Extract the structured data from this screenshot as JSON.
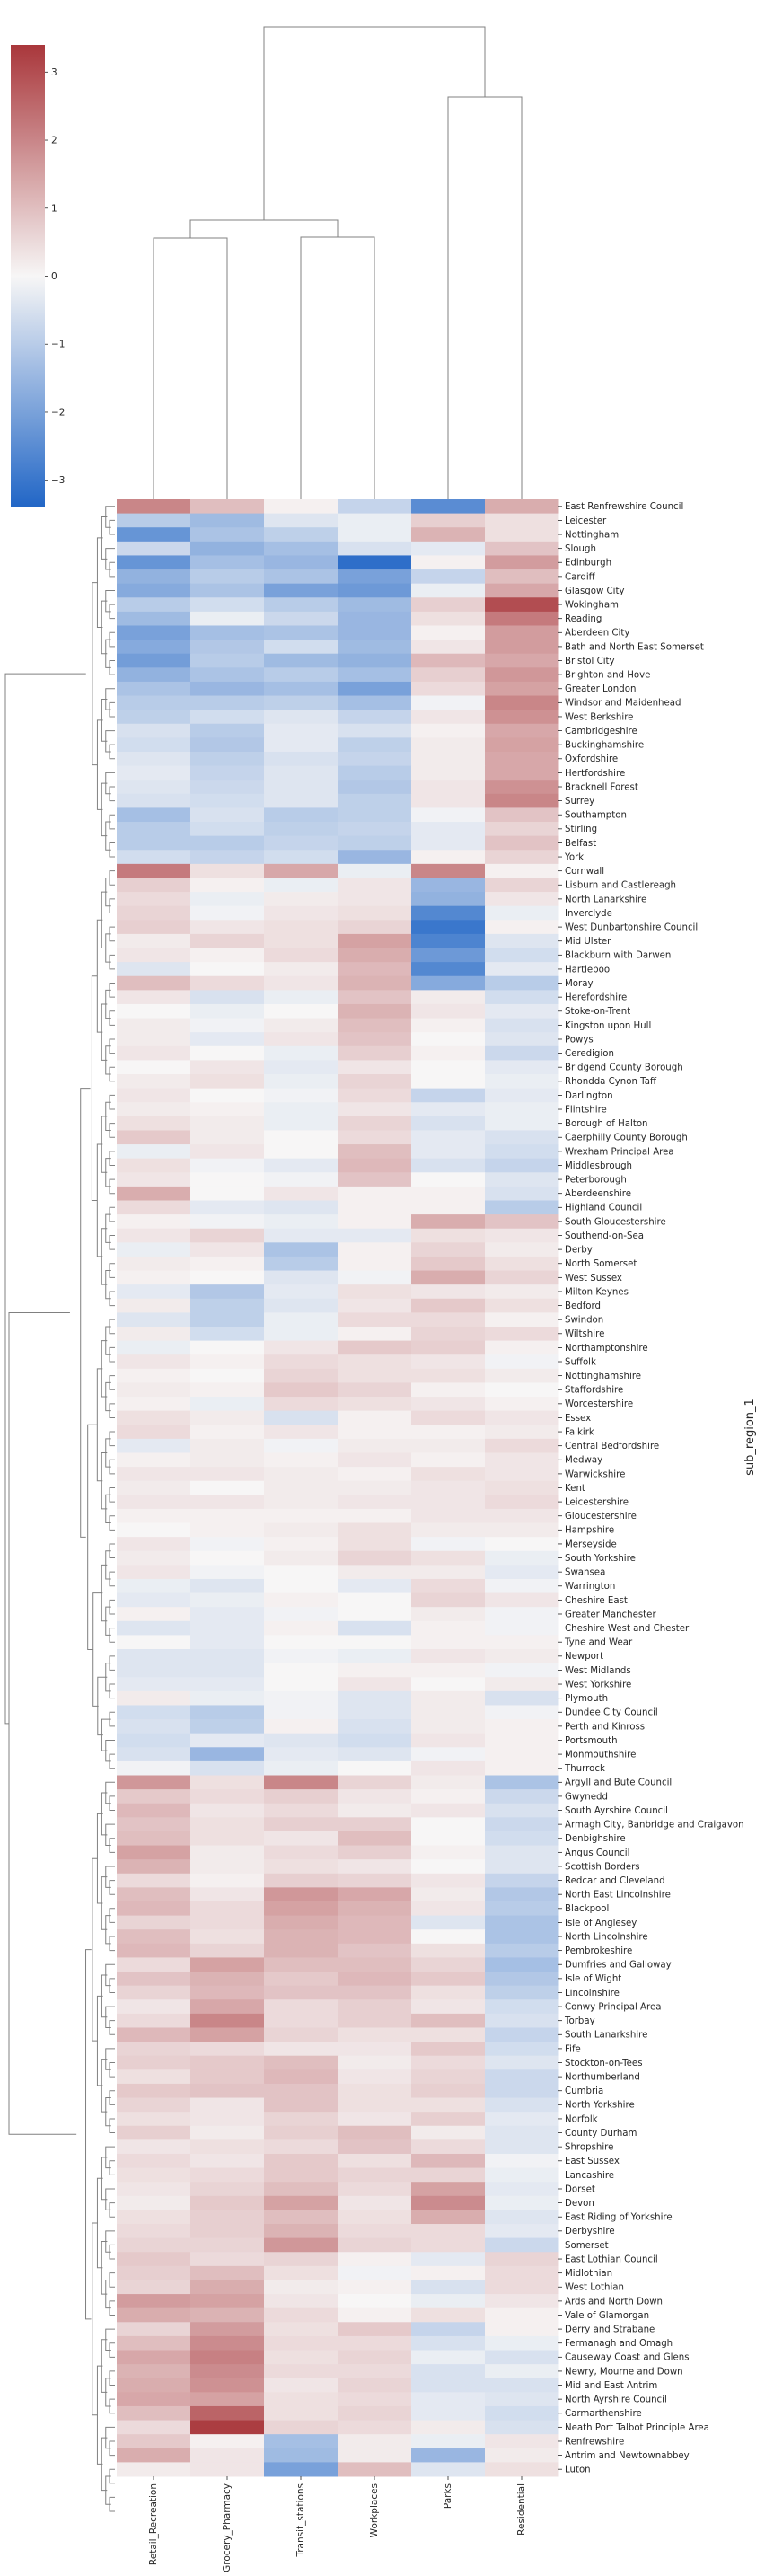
{
  "chart_data": {
    "type": "heatmap",
    "title": "",
    "xlabel": "",
    "ylabel": "sub_region_1",
    "columns": [
      "Retail_Recreation",
      "Grocery_Pharmacy",
      "Transit_stations",
      "Workplaces",
      "Parks",
      "Residential"
    ],
    "rows": [
      "East Renfrewshire Council",
      "Leicester",
      "Nottingham",
      "Slough",
      "Edinburgh",
      "Cardiff",
      "Glasgow City",
      "Wokingham",
      "Reading",
      "Aberdeen City",
      "Bath and North East Somerset",
      "Bristol City",
      "Brighton and Hove",
      "Greater London",
      "Windsor and Maidenhead",
      "West Berkshire",
      "Cambridgeshire",
      "Buckinghamshire",
      "Oxfordshire",
      "Hertfordshire",
      "Bracknell Forest",
      "Surrey",
      "Southampton",
      "Stirling",
      "Belfast",
      "York",
      "Cornwall",
      "Lisburn and Castlereagh",
      "North Lanarkshire",
      "Inverclyde",
      "West Dunbartonshire Council",
      "Mid Ulster",
      "Blackburn with Darwen",
      "Hartlepool",
      "Moray",
      "Herefordshire",
      "Stoke-on-Trent",
      "Kingston upon Hull",
      "Powys",
      "Ceredigion",
      "Bridgend County Borough",
      "Rhondda Cynon Taff",
      "Darlington",
      "Flintshire",
      "Borough of Halton",
      "Caerphilly County Borough",
      "Wrexham Principal Area",
      "Middlesbrough",
      "Peterborough",
      "Aberdeenshire",
      "Highland Council",
      "South Gloucestershire",
      "Southend-on-Sea",
      "Derby",
      "North Somerset",
      "West Sussex",
      "Milton Keynes",
      "Bedford",
      "Swindon",
      "Wiltshire",
      "Northamptonshire",
      "Suffolk",
      "Nottinghamshire",
      "Staffordshire",
      "Worcestershire",
      "Essex",
      "Falkirk",
      "Central Bedfordshire",
      "Medway",
      "Warwickshire",
      "Kent",
      "Leicestershire",
      "Gloucestershire",
      "Hampshire",
      "Merseyside",
      "South Yorkshire",
      "Swansea",
      "Warrington",
      "Cheshire East",
      "Greater Manchester",
      "Cheshire West and Chester",
      "Tyne and Wear",
      "Newport",
      "West Midlands",
      "West Yorkshire",
      "Plymouth",
      "Dundee City Council",
      "Perth and Kinross",
      "Portsmouth",
      "Monmouthshire",
      "Thurrock",
      "Argyll and Bute Council",
      "Gwynedd",
      "South Ayrshire Council",
      "Armagh City, Banbridge and Craigavon",
      "Denbighshire",
      "Angus Council",
      "Scottish Borders",
      "Redcar and Cleveland",
      "North East Lincolnshire",
      "Blackpool",
      "Isle of Anglesey",
      "North Lincolnshire",
      "Pembrokeshire",
      "Dumfries and Galloway",
      "Isle of Wight",
      "Lincolnshire",
      "Conwy Principal Area",
      "Torbay",
      "South Lanarkshire",
      "Fife",
      "Stockton-on-Tees",
      "Northumberland",
      "Cumbria",
      "North Yorkshire",
      "Norfolk",
      "County Durham",
      "Shropshire",
      "East Sussex",
      "Lancashire",
      "Dorset",
      "Devon",
      "East Riding of Yorkshire",
      "Derbyshire",
      "Somerset",
      "East Lothian Council",
      "Midlothian",
      "West Lothian",
      "Ards and North Down",
      "Vale of Glamorgan",
      "Derry and Strabane",
      "Fermanagh and Omagh",
      "Causeway Coast and Glens",
      "Newry, Mourne and Down",
      "Mid and East Antrim",
      "North Ayrshire Council",
      "Carmarthenshire",
      "Neath Port Talbot Principle Area",
      "Renfrewshire",
      "Antrim and Newtownabbey",
      "Luton"
    ],
    "values": [
      [
        2.0,
        1.0,
        0.1,
        -0.8,
        -2.5,
        1.3
      ],
      [
        -1.0,
        -1.4,
        -0.4,
        -0.2,
        0.7,
        0.4
      ],
      [
        -2.3,
        -1.2,
        -0.9,
        -0.2,
        1.2,
        0.4
      ],
      [
        -0.7,
        -1.6,
        -1.3,
        -0.5,
        -0.3,
        0.9
      ],
      [
        -2.3,
        -1.3,
        -1.5,
        -3.2,
        0.1,
        1.6
      ],
      [
        -1.6,
        -1.0,
        -1.2,
        -2.0,
        -0.8,
        1.0
      ],
      [
        -1.8,
        -1.2,
        -2.0,
        -2.2,
        -0.2,
        1.4
      ],
      [
        -1.0,
        -0.6,
        -1.0,
        -1.4,
        0.7,
        3.0
      ],
      [
        -1.4,
        -0.2,
        -0.7,
        -1.5,
        0.4,
        2.2
      ],
      [
        -2.0,
        -1.3,
        -1.2,
        -1.5,
        0.1,
        1.6
      ],
      [
        -1.8,
        -1.1,
        -0.6,
        -1.4,
        0.3,
        1.6
      ],
      [
        -2.1,
        -1.0,
        -1.4,
        -1.6,
        1.1,
        1.4
      ],
      [
        -1.6,
        -1.2,
        -1.0,
        -1.3,
        0.7,
        1.7
      ],
      [
        -1.2,
        -1.5,
        -1.3,
        -2.0,
        0.5,
        1.5
      ],
      [
        -1.0,
        -1.0,
        -0.9,
        -1.3,
        -0.1,
        2.0
      ],
      [
        -0.9,
        -0.6,
        -0.4,
        -0.8,
        0.3,
        1.8
      ],
      [
        -0.5,
        -1.0,
        -0.3,
        -0.5,
        0.1,
        1.4
      ],
      [
        -0.6,
        -1.1,
        -0.3,
        -0.9,
        0.2,
        1.5
      ],
      [
        -0.4,
        -0.9,
        -0.5,
        -0.8,
        0.2,
        1.4
      ],
      [
        -0.3,
        -0.8,
        -0.4,
        -1.0,
        0.2,
        1.4
      ],
      [
        -0.4,
        -0.7,
        -0.4,
        -1.1,
        0.3,
        1.8
      ],
      [
        -0.5,
        -0.6,
        -0.4,
        -0.9,
        0.3,
        2.0
      ],
      [
        -1.3,
        -0.5,
        -1.0,
        -0.9,
        -0.1,
        0.9
      ],
      [
        -1.0,
        -0.6,
        -0.9,
        -0.8,
        -0.3,
        0.6
      ],
      [
        -1.0,
        -1.0,
        -0.8,
        -0.9,
        -0.3,
        0.9
      ],
      [
        -0.6,
        -0.8,
        -0.6,
        -1.5,
        0.1,
        0.6
      ],
      [
        2.2,
        0.4,
        1.4,
        -0.2,
        2.0,
        0.1
      ],
      [
        0.7,
        0.1,
        -0.2,
        0.3,
        -1.5,
        0.6
      ],
      [
        0.5,
        -0.2,
        0.2,
        0.3,
        -1.6,
        0.3
      ],
      [
        0.6,
        -0.1,
        0.3,
        0.4,
        -2.6,
        -0.2
      ],
      [
        0.7,
        0.3,
        0.4,
        0.6,
        -3.0,
        0.1
      ],
      [
        0.2,
        0.6,
        0.4,
        1.5,
        -2.7,
        -0.4
      ],
      [
        0.3,
        0.1,
        0.5,
        1.3,
        -2.2,
        -0.6
      ],
      [
        -0.4,
        0.0,
        0.2,
        1.1,
        -2.6,
        -0.3
      ],
      [
        1.0,
        0.5,
        0.3,
        1.2,
        -1.8,
        -1.0
      ],
      [
        0.3,
        -0.5,
        -0.2,
        0.9,
        0.2,
        -0.6
      ],
      [
        0.0,
        -0.2,
        0.0,
        1.2,
        0.3,
        -0.3
      ],
      [
        0.2,
        -0.1,
        0.2,
        1.0,
        0.1,
        -0.5
      ],
      [
        0.2,
        -0.3,
        0.3,
        0.9,
        0.0,
        -0.4
      ],
      [
        0.3,
        0.0,
        -0.2,
        0.7,
        0.1,
        -0.7
      ],
      [
        0.0,
        0.3,
        -0.3,
        0.3,
        0.0,
        -0.3
      ],
      [
        0.2,
        0.4,
        -0.2,
        0.6,
        0.0,
        -0.2
      ],
      [
        0.3,
        0.0,
        -0.1,
        0.5,
        -0.8,
        -0.3
      ],
      [
        0.2,
        0.1,
        -0.2,
        0.3,
        -0.3,
        -0.2
      ],
      [
        0.4,
        0.2,
        -0.2,
        0.6,
        -0.5,
        -0.2
      ],
      [
        0.8,
        0.2,
        0.0,
        0.5,
        -0.3,
        -0.5
      ],
      [
        -0.2,
        0.3,
        0.0,
        1.0,
        -0.3,
        -0.6
      ],
      [
        0.4,
        -0.1,
        -0.3,
        1.1,
        -0.5,
        -0.8
      ],
      [
        0.3,
        0.0,
        -0.1,
        0.9,
        0.0,
        -0.4
      ],
      [
        1.3,
        0.0,
        0.3,
        0.1,
        0.1,
        -0.5
      ],
      [
        0.5,
        -0.3,
        -0.4,
        0.1,
        0.1,
        -1.0
      ],
      [
        0.1,
        -0.1,
        -0.2,
        0.1,
        1.3,
        0.9
      ],
      [
        0.3,
        0.6,
        -0.3,
        -0.3,
        0.4,
        0.3
      ],
      [
        -0.2,
        0.3,
        -1.2,
        0.1,
        0.6,
        0.2
      ],
      [
        0.2,
        0.1,
        -1.0,
        0.1,
        0.8,
        0.4
      ],
      [
        0.1,
        0.0,
        -0.4,
        -0.1,
        1.3,
        0.6
      ],
      [
        -0.3,
        -1.1,
        -0.3,
        0.4,
        0.3,
        0.2
      ],
      [
        0.2,
        -0.9,
        -0.4,
        0.3,
        0.8,
        0.4
      ],
      [
        -0.4,
        -0.9,
        -0.2,
        0.5,
        0.5,
        0.1
      ],
      [
        0.2,
        -0.6,
        -0.2,
        0.1,
        0.6,
        0.5
      ],
      [
        -0.2,
        0.0,
        0.3,
        0.8,
        0.7,
        0.1
      ],
      [
        0.3,
        0.1,
        0.5,
        0.4,
        0.3,
        -0.1
      ],
      [
        0.1,
        0.0,
        0.6,
        0.4,
        0.4,
        0.2
      ],
      [
        0.2,
        0.1,
        0.8,
        0.6,
        0.1,
        0.0
      ],
      [
        0.1,
        -0.2,
        0.5,
        0.4,
        0.3,
        0.1
      ],
      [
        0.4,
        0.2,
        -0.5,
        0.1,
        0.5,
        0.3
      ],
      [
        0.5,
        0.1,
        0.3,
        0.1,
        0.1,
        0.2
      ],
      [
        -0.3,
        0.2,
        -0.1,
        0.2,
        0.2,
        0.5
      ],
      [
        0.1,
        0.2,
        0.1,
        0.3,
        0.1,
        0.3
      ],
      [
        0.3,
        0.3,
        0.2,
        0.1,
        0.4,
        0.3
      ],
      [
        0.2,
        0.0,
        0.2,
        0.2,
        0.3,
        0.4
      ],
      [
        0.3,
        0.3,
        0.2,
        0.3,
        0.3,
        0.5
      ],
      [
        0.1,
        0.1,
        0.1,
        0.1,
        0.3,
        0.3
      ],
      [
        0.0,
        0.1,
        0.2,
        0.4,
        0.2,
        0.2
      ],
      [
        0.3,
        -0.1,
        0.1,
        0.4,
        -0.1,
        0.0
      ],
      [
        0.2,
        0.0,
        0.2,
        0.6,
        0.4,
        -0.2
      ],
      [
        0.3,
        -0.1,
        0.0,
        0.2,
        0.2,
        -0.3
      ],
      [
        -0.2,
        -0.4,
        0.0,
        -0.3,
        0.5,
        -0.1
      ],
      [
        -0.3,
        -0.2,
        0.1,
        0.0,
        0.6,
        0.3
      ],
      [
        0.1,
        -0.3,
        -0.1,
        0.0,
        0.2,
        -0.1
      ],
      [
        -0.4,
        -0.3,
        0.1,
        -0.5,
        0.1,
        -0.1
      ],
      [
        0.0,
        -0.3,
        0.0,
        0.0,
        0.1,
        0.1
      ],
      [
        -0.4,
        -0.4,
        -0.1,
        -0.2,
        0.3,
        0.2
      ],
      [
        -0.4,
        -0.4,
        0.0,
        0.1,
        0.1,
        -0.1
      ],
      [
        -0.3,
        -0.3,
        0.0,
        0.3,
        0.0,
        0.2
      ],
      [
        0.2,
        -0.2,
        -0.1,
        -0.4,
        0.2,
        -0.5
      ],
      [
        -0.6,
        -1.0,
        -0.1,
        -0.4,
        0.2,
        -0.1
      ],
      [
        -0.5,
        -0.9,
        0.1,
        -0.5,
        0.2,
        0.1
      ],
      [
        -0.6,
        -0.3,
        -0.4,
        -0.6,
        0.3,
        0.1
      ],
      [
        -0.5,
        -1.5,
        -0.3,
        -0.4,
        -0.1,
        0.1
      ],
      [
        -0.1,
        -0.5,
        -0.2,
        0.0,
        0.3,
        0.1
      ],
      [
        1.7,
        0.4,
        2.0,
        0.6,
        0.2,
        -1.2
      ],
      [
        0.8,
        0.5,
        0.7,
        0.3,
        0.1,
        -0.7
      ],
      [
        1.1,
        0.3,
        0.5,
        0.2,
        0.3,
        -0.5
      ],
      [
        0.9,
        0.4,
        0.7,
        0.7,
        0.0,
        -0.7
      ],
      [
        1.0,
        0.4,
        0.3,
        1.0,
        0.0,
        -0.6
      ],
      [
        1.5,
        0.2,
        0.5,
        0.7,
        0.1,
        -0.4
      ],
      [
        1.2,
        0.2,
        0.4,
        0.3,
        0.0,
        -0.4
      ],
      [
        0.5,
        0.1,
        0.7,
        0.6,
        0.3,
        -0.8
      ],
      [
        1.0,
        0.3,
        1.7,
        1.4,
        0.2,
        -1.1
      ],
      [
        1.1,
        0.5,
        1.5,
        1.2,
        0.3,
        -1.0
      ],
      [
        0.6,
        0.5,
        1.3,
        1.1,
        -0.4,
        -1.2
      ],
      [
        1.0,
        0.4,
        1.2,
        1.1,
        0.0,
        -1.2
      ],
      [
        1.1,
        0.6,
        1.2,
        0.9,
        0.4,
        -1.0
      ],
      [
        0.5,
        1.5,
        1.0,
        1.0,
        0.6,
        -1.3
      ],
      [
        0.9,
        1.2,
        0.8,
        1.1,
        0.8,
        -1.1
      ],
      [
        0.6,
        1.1,
        0.9,
        0.9,
        0.4,
        -0.9
      ],
      [
        0.3,
        1.4,
        0.5,
        0.7,
        0.3,
        -0.6
      ],
      [
        0.5,
        2.0,
        0.5,
        0.7,
        1.0,
        -0.5
      ],
      [
        1.1,
        1.5,
        0.6,
        0.4,
        0.4,
        -0.8
      ],
      [
        0.6,
        0.5,
        0.3,
        0.3,
        0.8,
        -0.6
      ],
      [
        0.7,
        0.8,
        1.0,
        0.2,
        0.5,
        -0.4
      ],
      [
        0.4,
        0.8,
        1.1,
        0.3,
        0.6,
        -0.7
      ],
      [
        0.8,
        0.9,
        0.9,
        0.4,
        0.7,
        -0.7
      ],
      [
        0.6,
        0.3,
        0.9,
        0.4,
        0.4,
        -0.5
      ],
      [
        0.4,
        0.3,
        0.6,
        0.3,
        0.7,
        -0.3
      ],
      [
        0.7,
        0.2,
        0.7,
        1.0,
        0.2,
        -0.4
      ],
      [
        0.3,
        0.4,
        0.5,
        0.9,
        0.5,
        -0.4
      ],
      [
        0.5,
        0.3,
        0.8,
        0.4,
        1.1,
        -0.1
      ],
      [
        0.4,
        0.5,
        0.8,
        0.6,
        0.6,
        -0.2
      ],
      [
        0.3,
        0.6,
        1.0,
        0.5,
        1.5,
        -0.3
      ],
      [
        0.2,
        0.8,
        1.5,
        0.3,
        1.9,
        -0.2
      ],
      [
        0.4,
        0.7,
        1.0,
        0.4,
        1.3,
        -0.4
      ],
      [
        0.5,
        0.7,
        1.2,
        0.5,
        0.5,
        -0.3
      ],
      [
        0.6,
        0.6,
        1.7,
        0.6,
        0.5,
        -0.7
      ],
      [
        0.8,
        0.5,
        0.6,
        0.1,
        -0.3,
        0.6
      ],
      [
        0.7,
        1.0,
        0.4,
        -0.1,
        0.1,
        0.5
      ],
      [
        0.6,
        1.3,
        0.2,
        0.1,
        -0.5,
        0.5
      ],
      [
        1.6,
        1.5,
        0.3,
        0.0,
        -0.2,
        0.3
      ],
      [
        1.3,
        1.2,
        0.5,
        0.1,
        0.4,
        0.1
      ],
      [
        0.6,
        1.6,
        0.4,
        0.8,
        -0.8,
        0.1
      ],
      [
        1.0,
        1.9,
        0.5,
        0.5,
        -0.5,
        -0.2
      ],
      [
        1.4,
        2.1,
        0.4,
        0.6,
        -0.2,
        -0.5
      ],
      [
        1.2,
        1.9,
        0.5,
        0.5,
        -0.5,
        -0.2
      ],
      [
        1.3,
        1.8,
        0.3,
        0.6,
        -0.5,
        -0.5
      ],
      [
        1.4,
        1.5,
        0.4,
        0.5,
        -0.3,
        -0.4
      ],
      [
        1.0,
        2.6,
        0.4,
        0.6,
        -0.3,
        -0.6
      ],
      [
        0.5,
        3.3,
        0.6,
        0.5,
        0.2,
        -0.5
      ],
      [
        0.8,
        0.1,
        -1.3,
        0.2,
        -0.2,
        0.3
      ],
      [
        1.3,
        0.3,
        -1.4,
        0.2,
        -1.5,
        0.2
      ],
      [
        0.2,
        0.3,
        -2.0,
        1.0,
        -0.4,
        0.4
      ]
    ],
    "vmin": -3.4,
    "vmax": 3.4,
    "colorbar_ticks": [
      -3,
      -2,
      -1,
      0,
      1,
      2,
      3
    ],
    "colormap": "vlag",
    "color_low": "#2166c6",
    "color_mid": "#f7f6f6",
    "color_high": "#a9373b",
    "dendrograms": [
      "rows-left",
      "columns-top"
    ]
  }
}
